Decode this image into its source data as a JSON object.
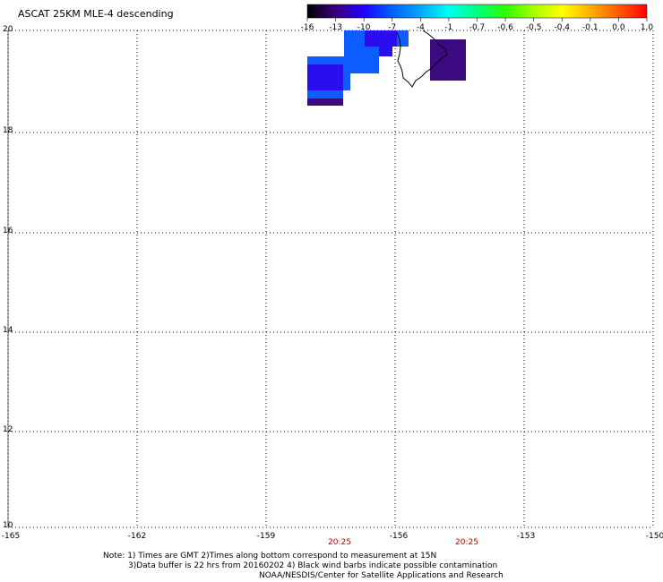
{
  "title": "ASCAT 25KM MLE-4 descending",
  "colorbar": {
    "labels": [
      "-16",
      "-13",
      "-10",
      "-7",
      "-4",
      "-1",
      "-0.7",
      "-0.6",
      "-0.5",
      "-0.4",
      "-0.1",
      "0.0",
      "1.0"
    ],
    "gradient": [
      "#000000",
      "#3a007a",
      "#1e00ff",
      "#0060ff",
      "#00a8ff",
      "#00ffee",
      "#00ff80",
      "#2cff00",
      "#a8ff00",
      "#ffff00",
      "#ffb000",
      "#ff5a00",
      "#ff0000"
    ]
  },
  "map": {
    "lon_ticks": [
      "-165",
      "-162",
      "-159",
      "-156",
      "-153",
      "-150"
    ],
    "lat_ticks": [
      "20",
      "18",
      "16",
      "14",
      "12",
      "10"
    ],
    "time_labels": [
      "20:25",
      "20:25"
    ],
    "grid": "dotted",
    "colors": {
      "blue_cell": "#0d5cff",
      "deep_blue_cell": "#2b0ef0",
      "purple_cell": "#3c0a80",
      "time_label": "#c00000",
      "coastline": "#000000"
    }
  },
  "note": {
    "line1": "Note: 1) Times are GMT 2)Times along bottom correspond to measurement at 15N",
    "line2": "3)Data buffer is 22 hrs from 20160202 4) Black wind barbs indicate possible contamination",
    "line3": "NOAA/NESDIS/Center for Satellite Applications and Research"
  }
}
